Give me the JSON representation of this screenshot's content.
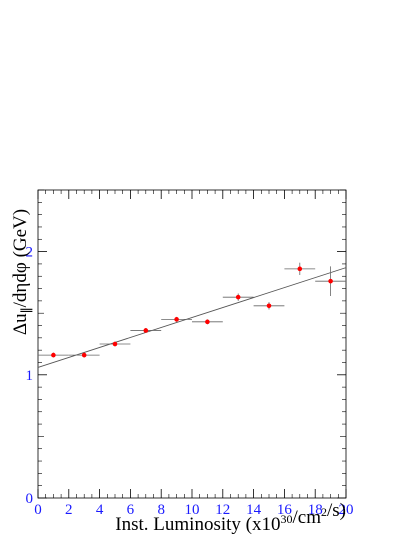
{
  "chart_data": {
    "type": "scatter",
    "title": "",
    "xlabel": "Inst. Luminosity (x10^30/cm^2/s)",
    "ylabel": "Δu∥/dηdφ (GeV)",
    "xlim": [
      0,
      20
    ],
    "ylim": [
      0,
      2.5
    ],
    "xticks": [
      "0",
      "2",
      "4",
      "6",
      "8",
      "10",
      "12",
      "14",
      "16",
      "18",
      "20"
    ],
    "yticks": [
      "0",
      "1",
      "2"
    ],
    "series": [
      {
        "x": [
          1,
          3,
          5,
          7,
          9,
          11,
          13,
          15,
          17,
          19
        ],
        "y": [
          1.16,
          1.16,
          1.25,
          1.36,
          1.45,
          1.43,
          1.63,
          1.56,
          1.86,
          1.76
        ],
        "x_err": [
          1,
          1,
          1,
          1,
          1,
          1,
          1,
          1,
          1,
          1
        ],
        "y_err": [
          0.02,
          0.02,
          0.02,
          0.02,
          0.02,
          0.02,
          0.03,
          0.03,
          0.05,
          0.12
        ],
        "color": "#ff0000"
      }
    ],
    "fit_line": {
      "x": [
        0,
        20
      ],
      "y": [
        1.06,
        1.87
      ],
      "color": "#555555"
    },
    "grid": false,
    "frame_color": "#000000",
    "tick_color": "#1a1aff"
  }
}
